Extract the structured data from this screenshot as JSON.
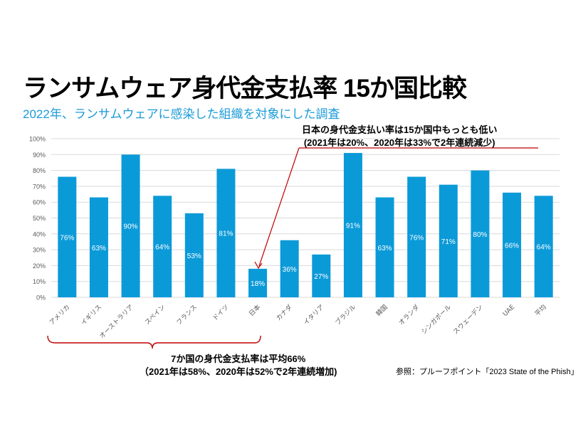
{
  "title": "ランサムウェア身代金支払率  15か国比較",
  "subtitle": "2022年、ランサムウェアに感染した組織を対象にした調査",
  "annotation_japan": {
    "line1": "日本の身代金支払い率は15か国中もっとも低い",
    "line2": "(2021年は20%、2020年は33%で2年連続減少)"
  },
  "annotation_group": {
    "line1": "7か国の身代金支払率は平均66%",
    "line2": "（2021年は58%、2020年は52%で2年連続増加)"
  },
  "source": "参照：プルーフポイント「2023  State of the Phish」",
  "colors": {
    "bar": "#0b9ad8",
    "accent": "#c00000",
    "grid": "#d9d9d9"
  },
  "chart_data": {
    "type": "bar",
    "categories": [
      "アメリカ",
      "イギリス",
      "オーストラリア",
      "スペイン",
      "フランス",
      "ドイツ",
      "日本",
      "カナダ",
      "イタリア",
      "ブラジル",
      "韓国",
      "オランダ",
      "シンガポール",
      "スウェーデン",
      "UAE",
      "平均"
    ],
    "values": [
      76,
      63,
      90,
      64,
      53,
      81,
      18,
      36,
      27,
      91,
      63,
      76,
      71,
      80,
      66,
      64
    ],
    "data_labels": [
      "76%",
      "63%",
      "90%",
      "64%",
      "53%",
      "81%",
      "18%",
      "36%",
      "27%",
      "91%",
      "63%",
      "76%",
      "71%",
      "80%",
      "66%",
      "64%"
    ],
    "yticks": [
      "0%",
      "10%",
      "20%",
      "30%",
      "40%",
      "50%",
      "60%",
      "70%",
      "80%",
      "90%",
      "100%"
    ],
    "ylim": [
      0,
      100
    ],
    "grid": true,
    "xlabel": "",
    "ylabel": ""
  }
}
